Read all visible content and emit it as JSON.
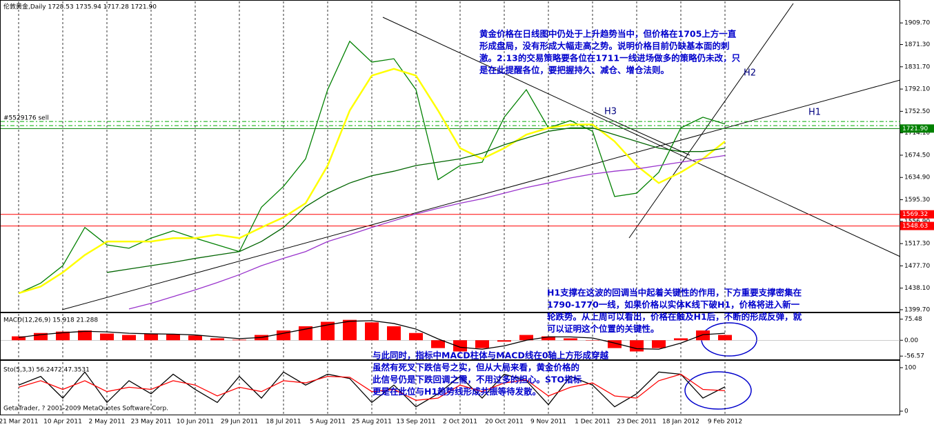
{
  "chart_data": [
    {
      "type": "line",
      "title": "伦敦黄金,Daily  1728.53 1735.94 1717.28 1721.90",
      "order": "#5529176 sell",
      "categories": [
        "21 Mar 2011",
        null,
        "10 Apr 2011",
        null,
        "2 May 2011",
        null,
        "23 May 2011",
        null,
        "10 Jun 2011",
        null,
        "29 Jun 2011",
        null,
        "18 Jul 2011",
        null,
        "5 Aug 2011",
        null,
        "25 Aug 2011",
        null,
        "13 Sep 2011",
        null,
        "2 Oct 2011",
        null,
        "20 Oct 2011",
        null,
        "9 Nov 2011",
        null,
        "1 Dec 2011",
        null,
        "23 Dec 2011",
        null,
        "18 Jan 2012",
        null,
        "9 Feb 2012"
      ],
      "series": [
        {
          "color": "#008000",
          "values": [
            1429,
            1447,
            1478,
            1546,
            1515,
            1509,
            1527,
            1540,
            1527,
            1515,
            1503,
            1582,
            1619,
            1668,
            1791,
            1877,
            1840,
            1846,
            1791,
            1631,
            1656,
            1662,
            1742,
            1791,
            1723,
            1736,
            1717,
            1601,
            1607,
            1644,
            1723,
            1742,
            1730
          ]
        },
        {
          "color": "#ffff00",
          "values": [
            1429,
            1441,
            1466,
            1497,
            1521,
            1521,
            1521,
            1527,
            1527,
            1533,
            1527,
            1546,
            1564,
            1589,
            1656,
            1754,
            1816,
            1828,
            1816,
            1754,
            1687,
            1668,
            1687,
            1711,
            1723,
            1729,
            1729,
            1699,
            1656,
            1625,
            1644,
            1668,
            1699
          ]
        },
        {
          "color": "#006400",
          "values": [
            null,
            null,
            null,
            null,
            1466,
            1472,
            1478,
            1484,
            1491,
            1497,
            1503,
            1521,
            1546,
            1583,
            1607,
            1625,
            1638,
            1646,
            1656,
            1662,
            1668,
            1678,
            1693,
            1705,
            1717,
            1723,
            1723,
            1711,
            1699,
            1687,
            1681,
            1681,
            1687
          ]
        },
        {
          "color": "#9933cc",
          "values": [
            null,
            null,
            null,
            null,
            null,
            1401,
            1411,
            1423,
            1435,
            1448,
            1462,
            1478,
            1491,
            1503,
            1521,
            1533,
            1546,
            1558,
            1570,
            1580,
            1589,
            1597,
            1607,
            1617,
            1625,
            1634,
            1641,
            1646,
            1650,
            1656,
            1662,
            1668,
            1674
          ]
        }
      ],
      "levels": [
        {
          "value": 1734.4,
          "color": "#00aa00",
          "dash": true
        },
        {
          "value": 1727,
          "color": "#00aa00",
          "dash": true
        },
        {
          "value": 1721.9,
          "label": "1721.90",
          "color": "#008000"
        },
        {
          "value": 1569.32,
          "color": "#ff0000"
        },
        {
          "value": 1548.63,
          "color": "#ff0000"
        }
      ],
      "ylim": [
        1396,
        1948
      ],
      "yticks": [
        {
          "value": 1909.7,
          "label": "1909.70"
        },
        {
          "value": 1871.3,
          "label": "1871.30"
        },
        {
          "value": 1831.7,
          "label": "1831.70"
        },
        {
          "value": 1792.1,
          "label": "1792.10"
        },
        {
          "value": 1752.5,
          "label": "1752.50"
        },
        {
          "value": 1714.1,
          "label": "1714.10"
        },
        {
          "value": 1674.5,
          "label": "1674.50"
        },
        {
          "value": 1634.9,
          "label": "1634.90"
        },
        {
          "value": 1595.3,
          "label": "1595.30"
        },
        {
          "value": 1556.9,
          "label": "1556.90"
        },
        {
          "value": 1517.3,
          "label": "1517.30"
        },
        {
          "value": 1477.7,
          "label": "1477.70"
        },
        {
          "value": 1438.1,
          "label": "1438.10"
        },
        {
          "value": 1399.7,
          "label": "1399.70"
        }
      ],
      "annotations": [
        {
          "lines": [
            "黄金价格在日线图中仍处于上升趋势当中，但价格在1705上方一直",
            "形成盘局，没有形成大幅走高之势。说明价格目前仍缺基本面的刺",
            "激。2.13的交易策略要各位在1711一线进场做多的策略仍未改，只",
            "是在此提醒各位，要把握持久、减仓、增仓法则。"
          ]
        },
        {
          "lines": [
            "H1支撑在这波的回调当中起着关键性的作用，下方重要支撑密集在",
            "1790-1770一线，如果价格以实体K线下破H1，价格将进入新一",
            "轮跌势。从上周可以看出，价格在触及H1后，不断的形成反弹，就",
            "可以证明这个位置的关键性。"
          ]
        },
        {
          "lines": [
            "与此同时，指标中MACD柱体与MACD线在0轴上方形成穿越",
            "虽然有死叉下跌信号之实，但从大局来看，黄金价格的",
            "此信号仍是下跌回调之需，不用过多的担心。STO指标",
            "更是在此位与H1趋势线形成共振等待发散。"
          ]
        }
      ],
      "labels": [
        "H1",
        "H2",
        "H3"
      ]
    },
    {
      "type": "line",
      "title": "MACD(12,26,9) 15.918 21.288",
      "series": [
        {
          "type": "bar",
          "color": "#ff0000",
          "values": [
            14,
            26,
            31,
            35,
            24,
            19,
            24,
            21,
            17,
            7,
            2,
            19,
            35,
            50,
            66,
            73,
            64,
            50,
            26,
            -28,
            -40,
            -28,
            -5,
            19,
            14,
            7,
            0,
            -28,
            -40,
            -28,
            7,
            35,
            19
          ]
        },
        {
          "color": "#000000",
          "values": [
            10,
            20,
            27,
            32,
            30,
            25,
            23,
            22,
            19,
            12,
            6,
            10,
            25,
            40,
            55,
            68,
            70,
            60,
            40,
            5,
            -25,
            -32,
            -20,
            0,
            12,
            12,
            8,
            -10,
            -30,
            -32,
            -10,
            20,
            25
          ]
        }
      ],
      "ylim": [
        -68.4,
        94.4
      ],
      "yticks": [
        75.48,
        {
          "value": 0,
          "label": "0.00"
        },
        -56.57
      ]
    },
    {
      "type": "line",
      "title": "Sto(5,3,3) 56.2472 47.3531",
      "copyright": "GetaTrader, ? 2001-2009 MetaQuotes Software Corp.",
      "series": [
        {
          "color": "#000000",
          "values": [
            60,
            80,
            30,
            90,
            20,
            70,
            40,
            85,
            50,
            20,
            80,
            30,
            90,
            60,
            85,
            75,
            20,
            60,
            10,
            40,
            80,
            30,
            85,
            70,
            15,
            80,
            60,
            10,
            40,
            90,
            85,
            30,
            56
          ]
        },
        {
          "color": "#ff0000",
          "values": [
            55,
            70,
            50,
            70,
            45,
            55,
            50,
            70,
            60,
            35,
            55,
            45,
            70,
            65,
            80,
            78,
            45,
            50,
            25,
            30,
            60,
            45,
            65,
            72,
            35,
            55,
            65,
            35,
            30,
            70,
            85,
            50,
            47
          ]
        }
      ],
      "ylim": [
        -6.3,
        112.7
      ],
      "yticks": [
        100,
        0
      ]
    }
  ]
}
